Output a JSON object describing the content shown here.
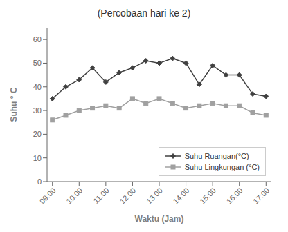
{
  "chart_data": {
    "type": "line",
    "title": "(Percobaan hari ke 2)",
    "xlabel": "Waktu (Jam)",
    "ylabel": "Suhu ° C",
    "x": [
      0,
      0.5,
      1,
      1.5,
      2,
      2.5,
      3,
      3.5,
      4,
      4.5,
      5,
      5.5,
      6,
      6.5,
      7,
      7.5,
      8
    ],
    "series": [
      {
        "name": "Suhu Ruangan(°C)",
        "color": "#404040",
        "marker": "diamond",
        "values": [
          35,
          40,
          43,
          48,
          42,
          46,
          48,
          51,
          50,
          52,
          50,
          41,
          49,
          45,
          45,
          37,
          36
        ]
      },
      {
        "name": "Suhu Lingkungan (°C)",
        "color": "#a0a0a0",
        "marker": "square",
        "values": [
          26,
          28,
          30,
          31,
          32,
          31,
          35,
          33,
          35,
          33,
          31,
          32,
          33,
          32,
          32,
          29,
          28
        ]
      }
    ],
    "xlim": [
      -0.2,
      8.2
    ],
    "xticks": [
      {
        "value": 0,
        "label": "09:00"
      },
      {
        "value": 1,
        "label": "10:00"
      },
      {
        "value": 2,
        "label": "11:00"
      },
      {
        "value": 3,
        "label": "12:00"
      },
      {
        "value": 4,
        "label": "13:00"
      },
      {
        "value": 5,
        "label": "14:00"
      },
      {
        "value": 6,
        "label": "15:00"
      },
      {
        "value": 7,
        "label": "16:00"
      },
      {
        "value": 8,
        "label": "17:00"
      }
    ],
    "ylim": [
      0,
      65
    ],
    "yticks": [
      0,
      10,
      20,
      30,
      40,
      50,
      60
    ],
    "grid": false,
    "legend": "lower right"
  }
}
